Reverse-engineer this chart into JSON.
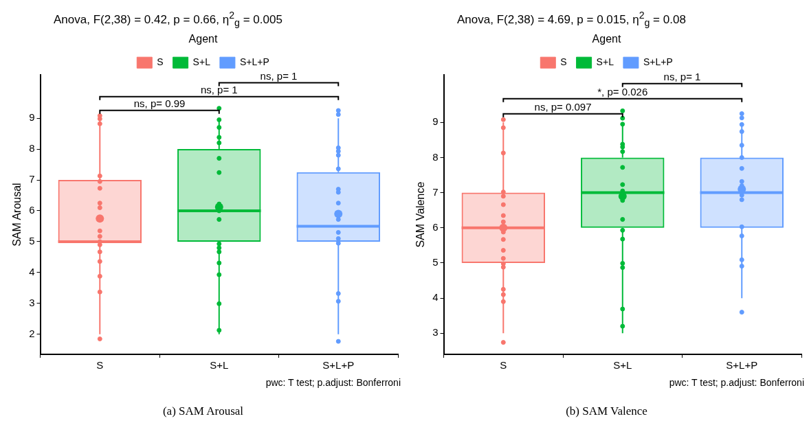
{
  "chart_data": [
    {
      "type": "box",
      "title": "Anova, F(2,38) = 0.42, p = 0.66, η$^{2}$$_{g}$ = 0.005",
      "ylabel": "SAM Arousal",
      "legend_title": "Agent",
      "legend": "top",
      "grid": false,
      "categories": [
        "S",
        "S+L",
        "S+L+P"
      ],
      "colors": [
        "#f8766d",
        "#00ba38",
        "#619cff"
      ],
      "ylim": [
        1.35,
        10.4
      ],
      "yticks": [
        2,
        3,
        4,
        5,
        6,
        7,
        8,
        9
      ],
      "boxes": [
        {
          "low": 2,
          "q1": 5,
          "median": 5,
          "q3": 7,
          "high": 9,
          "mean": 5.75
        },
        {
          "low": 2,
          "q1": 5,
          "median": 6,
          "q3": 8,
          "high": 9,
          "mean": 6.12
        },
        {
          "low": 2,
          "q1": 5,
          "median": 5.5,
          "q3": 7.25,
          "high": 9,
          "mean": 5.9
        }
      ],
      "series": [
        {
          "type": "scatter",
          "name": "S",
          "color": "#f8766d",
          "x": [
            "S",
            "S",
            "S",
            "S",
            "S",
            "S",
            "S",
            "S",
            "S",
            "S",
            "S",
            "S",
            "S",
            "S",
            "S",
            "S",
            "S"
          ],
          "values": [
            8.98,
            9.08,
            8.82,
            7.13,
            6.95,
            6.73,
            6.25,
            6.1,
            5.35,
            5.17,
            5.0,
            4.9,
            4.67,
            4.36,
            3.88,
            3.37,
            1.85
          ]
        },
        {
          "type": "scatter",
          "name": "S+L",
          "color": "#00ba38",
          "x": [
            "S+L",
            "S+L",
            "S+L",
            "S+L",
            "S+L",
            "S+L",
            "S+L",
            "S+L",
            "S+L",
            "S+L",
            "S+L",
            "S+L",
            "S+L",
            "S+L",
            "S+L",
            "S+L",
            "S+L"
          ],
          "values": [
            9.32,
            8.95,
            8.7,
            8.38,
            8.2,
            7.7,
            7.24,
            6.22,
            5.72,
            4.93,
            4.8,
            4.67,
            4.31,
            3.93,
            2.99,
            2.13,
            6.0
          ]
        },
        {
          "type": "scatter",
          "name": "S+L+P",
          "color": "#619cff",
          "x": [
            "S+L+P",
            "S+L+P",
            "S+L+P",
            "S+L+P",
            "S+L+P",
            "S+L+P",
            "S+L+P",
            "S+L+P",
            "S+L+P",
            "S+L+P",
            "S+L+P",
            "S+L+P",
            "S+L+P",
            "S+L+P",
            "S+L+P",
            "S+L+P"
          ],
          "values": [
            9.25,
            9.12,
            8.04,
            7.93,
            7.8,
            7.36,
            6.7,
            6.6,
            6.25,
            5.72,
            5.3,
            5.1,
            4.95,
            3.32,
            3.07,
            1.77
          ]
        }
      ],
      "annotations": [
        "ns, p= 0.99",
        "ns, p= 1",
        "ns, p= 1",
        "pwc: T test; p.adjust: Bonferroni",
        "(a) SAM Arousal"
      ]
    },
    {
      "type": "box",
      "title": "Anova, F(2,38) = 4.69, p = 0.015, η$^{2}$$_{g}$ = 0.08",
      "ylabel": "SAM Valence",
      "legend_title": "Agent",
      "legend": "top",
      "grid": false,
      "categories": [
        "S",
        "S+L",
        "S+L+P"
      ],
      "colors": [
        "#f8766d",
        "#00ba38",
        "#619cff"
      ],
      "ylim": [
        2.4,
        10.35
      ],
      "yticks": [
        3,
        4,
        5,
        6,
        7,
        8,
        9
      ],
      "boxes": [
        {
          "low": 3,
          "q1": 5,
          "median": 6,
          "q3": 7,
          "high": 9,
          "mean": 6.0
        },
        {
          "low": 3,
          "q1": 6,
          "median": 7,
          "q3": 8,
          "high": 9,
          "mean": 6.9
        },
        {
          "low": 4,
          "q1": 6,
          "median": 7,
          "q3": 8,
          "high": 9,
          "mean": 7.1
        }
      ],
      "series": [
        {
          "type": "scatter",
          "name": "S",
          "color": "#f8766d",
          "x": [
            "S",
            "S",
            "S",
            "S",
            "S",
            "S",
            "S",
            "S",
            "S",
            "S",
            "S",
            "S",
            "S",
            "S",
            "S",
            "S",
            "S",
            "S"
          ],
          "values": [
            9.08,
            8.85,
            8.13,
            7.02,
            6.9,
            6.66,
            6.35,
            6.17,
            5.88,
            5.67,
            5.36,
            5.13,
            4.98,
            4.88,
            4.25,
            4.1,
            3.9,
            2.74
          ]
        },
        {
          "type": "scatter",
          "name": "S+L",
          "color": "#00ba38",
          "x": [
            "S+L",
            "S+L",
            "S+L",
            "S+L",
            "S+L",
            "S+L",
            "S+L",
            "S+L",
            "S+L",
            "S+L",
            "S+L",
            "S+L",
            "S+L",
            "S+L",
            "S+L",
            "S+L",
            "S+L"
          ],
          "values": [
            9.33,
            9.12,
            8.95,
            8.38,
            8.3,
            8.17,
            7.72,
            7.23,
            7.05,
            6.78,
            6.24,
            5.93,
            5.68,
            4.99,
            4.87,
            3.69,
            3.2
          ]
        },
        {
          "type": "scatter",
          "name": "S+L+P",
          "color": "#619cff",
          "x": [
            "S+L+P",
            "S+L+P",
            "S+L+P",
            "S+L+P",
            "S+L+P",
            "S+L+P",
            "S+L+P",
            "S+L+P",
            "S+L+P",
            "S+L+P",
            "S+L+P",
            "S+L+P",
            "S+L+P",
            "S+L+P",
            "S+L+P",
            "S+L+P"
          ],
          "values": [
            9.25,
            9.13,
            8.94,
            8.74,
            8.35,
            8.0,
            7.69,
            7.32,
            7.2,
            6.93,
            6.8,
            6.03,
            5.77,
            5.09,
            4.91,
            3.6
          ]
        }
      ],
      "annotations": [
        "ns, p= 0.097",
        "*, p= 0.026",
        "ns, p= 1",
        "pwc: T test; p.adjust: Bonferroni",
        "(b) SAM Valence"
      ]
    }
  ]
}
